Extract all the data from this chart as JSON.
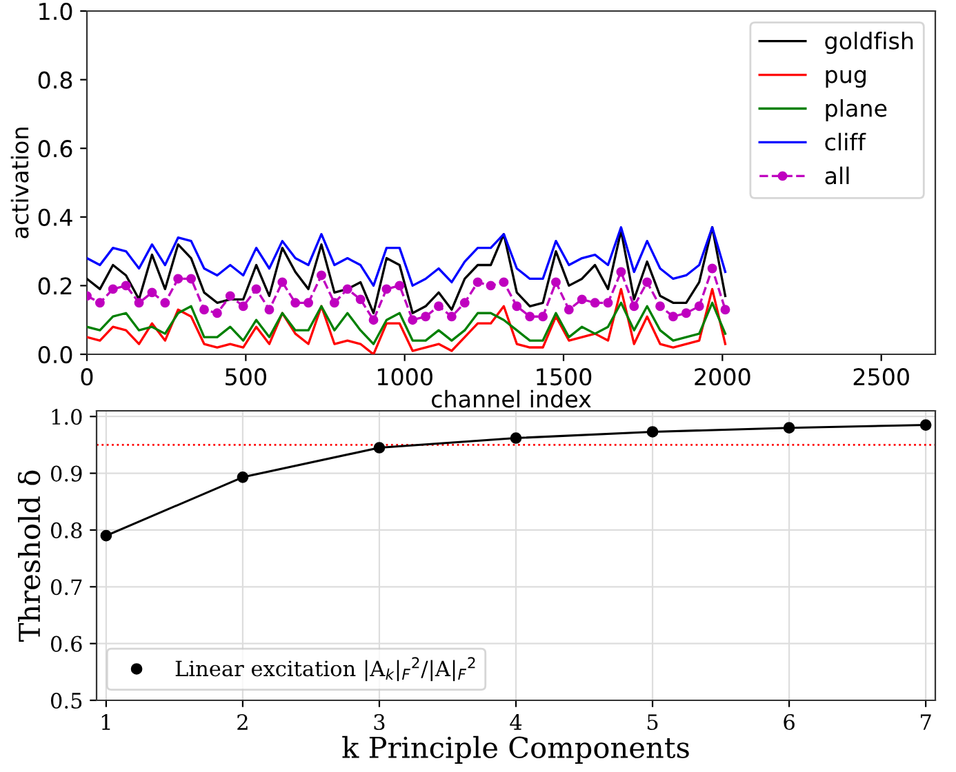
{
  "chart_data": [
    {
      "type": "line",
      "xlabel": "channel index",
      "ylabel": "activation",
      "xlim": [
        0,
        2670
      ],
      "xticks": [
        0,
        500,
        1000,
        1500,
        2000,
        2500
      ],
      "ylim": [
        0,
        1
      ],
      "yticks": [
        {
          "value": 0,
          "label": "0.0"
        },
        {
          "value": 0.2,
          "label": "0.2"
        },
        {
          "value": 0.4,
          "label": "0.4"
        },
        {
          "value": 0.6,
          "label": "0.6"
        },
        {
          "value": 0.8,
          "label": "0.8"
        },
        {
          "value": 1,
          "label": "1.0"
        }
      ],
      "grid": false,
      "legend": "top right",
      "x": [
        0,
        41,
        82,
        123,
        164,
        205,
        246,
        287,
        328,
        369,
        410,
        451,
        492,
        533,
        574,
        615,
        656,
        697,
        738,
        779,
        820,
        861,
        902,
        943,
        984,
        1025,
        1066,
        1107,
        1148,
        1189,
        1230,
        1271,
        1312,
        1353,
        1394,
        1435,
        1476,
        1517,
        1558,
        1599,
        1640,
        1681,
        1722,
        1763,
        1804,
        1845,
        1886,
        1927,
        1968,
        2009
      ],
      "series": [
        {
          "name": "goldfish",
          "color": "#000000",
          "line_style": "solid",
          "marker": "none",
          "values": [
            0.22,
            0.19,
            0.26,
            0.23,
            0.16,
            0.29,
            0.19,
            0.32,
            0.28,
            0.18,
            0.15,
            0.16,
            0.16,
            0.26,
            0.17,
            0.31,
            0.24,
            0.19,
            0.32,
            0.18,
            0.19,
            0.21,
            0.12,
            0.28,
            0.26,
            0.12,
            0.14,
            0.18,
            0.13,
            0.22,
            0.26,
            0.26,
            0.35,
            0.18,
            0.14,
            0.15,
            0.3,
            0.2,
            0.22,
            0.26,
            0.19,
            0.36,
            0.16,
            0.27,
            0.17,
            0.15,
            0.15,
            0.21,
            0.37,
            0.17
          ]
        },
        {
          "name": "pug",
          "color": "#ff0000",
          "line_style": "solid",
          "marker": "none",
          "values": [
            0.05,
            0.04,
            0.08,
            0.07,
            0.03,
            0.09,
            0.04,
            0.13,
            0.11,
            0.03,
            0.02,
            0.03,
            0.02,
            0.08,
            0.03,
            0.12,
            0.06,
            0.03,
            0.14,
            0.03,
            0.04,
            0.03,
            0.0,
            0.09,
            0.09,
            0.01,
            0.02,
            0.03,
            0.01,
            0.05,
            0.09,
            0.09,
            0.14,
            0.03,
            0.02,
            0.02,
            0.11,
            0.04,
            0.05,
            0.06,
            0.04,
            0.19,
            0.03,
            0.11,
            0.03,
            0.02,
            0.03,
            0.04,
            0.19,
            0.03
          ]
        },
        {
          "name": "plane",
          "color": "#008000",
          "line_style": "solid",
          "marker": "none",
          "values": [
            0.08,
            0.07,
            0.11,
            0.12,
            0.07,
            0.08,
            0.06,
            0.12,
            0.14,
            0.05,
            0.05,
            0.08,
            0.04,
            0.1,
            0.05,
            0.12,
            0.07,
            0.07,
            0.14,
            0.07,
            0.12,
            0.07,
            0.03,
            0.1,
            0.12,
            0.04,
            0.04,
            0.07,
            0.04,
            0.07,
            0.12,
            0.12,
            0.1,
            0.07,
            0.04,
            0.04,
            0.12,
            0.05,
            0.08,
            0.06,
            0.08,
            0.15,
            0.07,
            0.14,
            0.07,
            0.04,
            0.05,
            0.06,
            0.15,
            0.06
          ]
        },
        {
          "name": "cliff",
          "color": "#0000ff",
          "line_style": "solid",
          "marker": "none",
          "values": [
            0.28,
            0.26,
            0.31,
            0.3,
            0.25,
            0.32,
            0.26,
            0.34,
            0.33,
            0.25,
            0.23,
            0.26,
            0.23,
            0.31,
            0.25,
            0.33,
            0.28,
            0.26,
            0.35,
            0.26,
            0.28,
            0.26,
            0.2,
            0.31,
            0.31,
            0.2,
            0.22,
            0.25,
            0.21,
            0.27,
            0.31,
            0.31,
            0.35,
            0.25,
            0.22,
            0.22,
            0.33,
            0.26,
            0.28,
            0.29,
            0.26,
            0.37,
            0.24,
            0.33,
            0.25,
            0.22,
            0.23,
            0.26,
            0.37,
            0.24
          ]
        },
        {
          "name": "all",
          "color": "#bf00bf",
          "line_style": "dashed",
          "marker": "circle",
          "values": [
            0.17,
            0.15,
            0.19,
            0.2,
            0.15,
            0.18,
            0.15,
            0.22,
            0.22,
            0.13,
            0.12,
            0.17,
            0.14,
            0.19,
            0.13,
            0.21,
            0.15,
            0.15,
            0.23,
            0.15,
            0.19,
            0.16,
            0.1,
            0.19,
            0.2,
            0.1,
            0.11,
            0.14,
            0.11,
            0.15,
            0.21,
            0.2,
            0.21,
            0.14,
            0.11,
            0.11,
            0.21,
            0.13,
            0.16,
            0.15,
            0.15,
            0.24,
            0.14,
            0.21,
            0.14,
            0.11,
            0.12,
            0.14,
            0.25,
            0.13
          ]
        }
      ]
    },
    {
      "type": "line",
      "xlabel": "k Principle Components",
      "ylabel": "Threshold δ",
      "xlim": [
        0.93,
        7.07
      ],
      "xticks": [
        1,
        2,
        3,
        4,
        5,
        6,
        7
      ],
      "ylim": [
        0.5,
        1.01
      ],
      "yticks": [
        0.5,
        0.6,
        0.7,
        0.8,
        0.9,
        {
          "value": 1.0,
          "label": "1.0"
        }
      ],
      "grid": true,
      "legend": "bottom left",
      "x": [
        1,
        2,
        3,
        4,
        5,
        6,
        7
      ],
      "series": [
        {
          "name": "Linear excitation |A$_{k}$|$_{F}$$^{2}$/|A|$_{F}$$^{2}$",
          "color": "#000000",
          "line_style": "solid",
          "marker": "circle",
          "values": [
            0.79,
            0.893,
            0.945,
            0.962,
            0.973,
            0.98,
            0.985
          ]
        }
      ],
      "ref_lines": [
        {
          "axis": "y",
          "value": 0.95,
          "color": "#ff0000",
          "line_style": "dotted"
        }
      ]
    }
  ]
}
